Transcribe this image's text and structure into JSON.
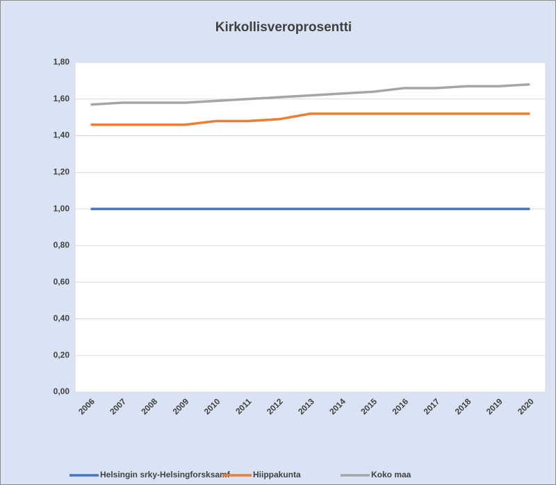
{
  "chart_data": {
    "type": "line",
    "title": "Kirkollisveroprosentti",
    "categories": [
      "2006",
      "2007",
      "2008",
      "2009",
      "2010",
      "2011",
      "2012",
      "2013",
      "2014",
      "2015",
      "2016",
      "2017",
      "2018",
      "2019",
      "2020"
    ],
    "series": [
      {
        "name": "Helsingin srky-Helsingforsksamf",
        "color": "#4472c4",
        "values": [
          1.0,
          1.0,
          1.0,
          1.0,
          1.0,
          1.0,
          1.0,
          1.0,
          1.0,
          1.0,
          1.0,
          1.0,
          1.0,
          1.0,
          1.0
        ]
      },
      {
        "name": "Hiippakunta",
        "color": "#ed7d31",
        "values": [
          1.46,
          1.46,
          1.46,
          1.46,
          1.48,
          1.48,
          1.49,
          1.52,
          1.52,
          1.52,
          1.52,
          1.52,
          1.52,
          1.52,
          1.52
        ]
      },
      {
        "name": "Koko maa",
        "color": "#a5a5a5",
        "values": [
          1.57,
          1.58,
          1.58,
          1.58,
          1.59,
          1.6,
          1.61,
          1.62,
          1.63,
          1.64,
          1.66,
          1.66,
          1.67,
          1.67,
          1.68
        ]
      }
    ],
    "ylim": [
      0,
      1.8
    ],
    "yticks": [
      {
        "value": 0,
        "label": "0,00"
      },
      {
        "value": 0.2,
        "label": "0,20"
      },
      {
        "value": 0.4,
        "label": "0,40"
      },
      {
        "value": 0.6,
        "label": "0,60"
      },
      {
        "value": 0.8,
        "label": "0,80"
      },
      {
        "value": 1.0,
        "label": "1,00"
      },
      {
        "value": 1.2,
        "label": "1,20"
      },
      {
        "value": 1.4,
        "label": "1,40"
      },
      {
        "value": 1.6,
        "label": "1,60"
      },
      {
        "value": 1.8,
        "label": "1,80"
      }
    ],
    "grid": true,
    "legend": "bottom"
  }
}
